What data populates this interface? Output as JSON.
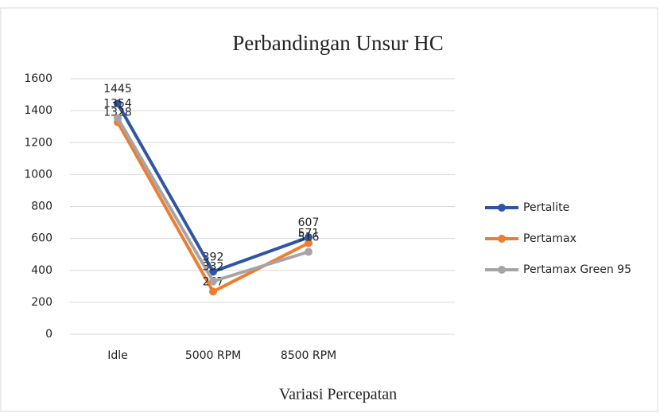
{
  "chart_data": {
    "type": "line",
    "title": "Perbandingan Unsur HC",
    "x_label": "Variasi Percepatan",
    "categories": [
      "Idle",
      "5000 RPM",
      "8500 RPM"
    ],
    "series": [
      {
        "name": "Pertalite",
        "color": "#2f55a4",
        "values": [
          1445,
          392,
          607
        ]
      },
      {
        "name": "Pertamax",
        "color": "#ed7d31",
        "values": [
          1328,
          267,
          571
        ]
      },
      {
        "name": "Pertamax Green 95",
        "color": "#a5a5a5",
        "values": [
          1354,
          332,
          516
        ]
      }
    ],
    "ylim": [
      0,
      1600
    ],
    "yticks": [
      0,
      200,
      400,
      600,
      800,
      1000,
      1200,
      1400,
      1600
    ],
    "grid": true,
    "legend": "right"
  }
}
